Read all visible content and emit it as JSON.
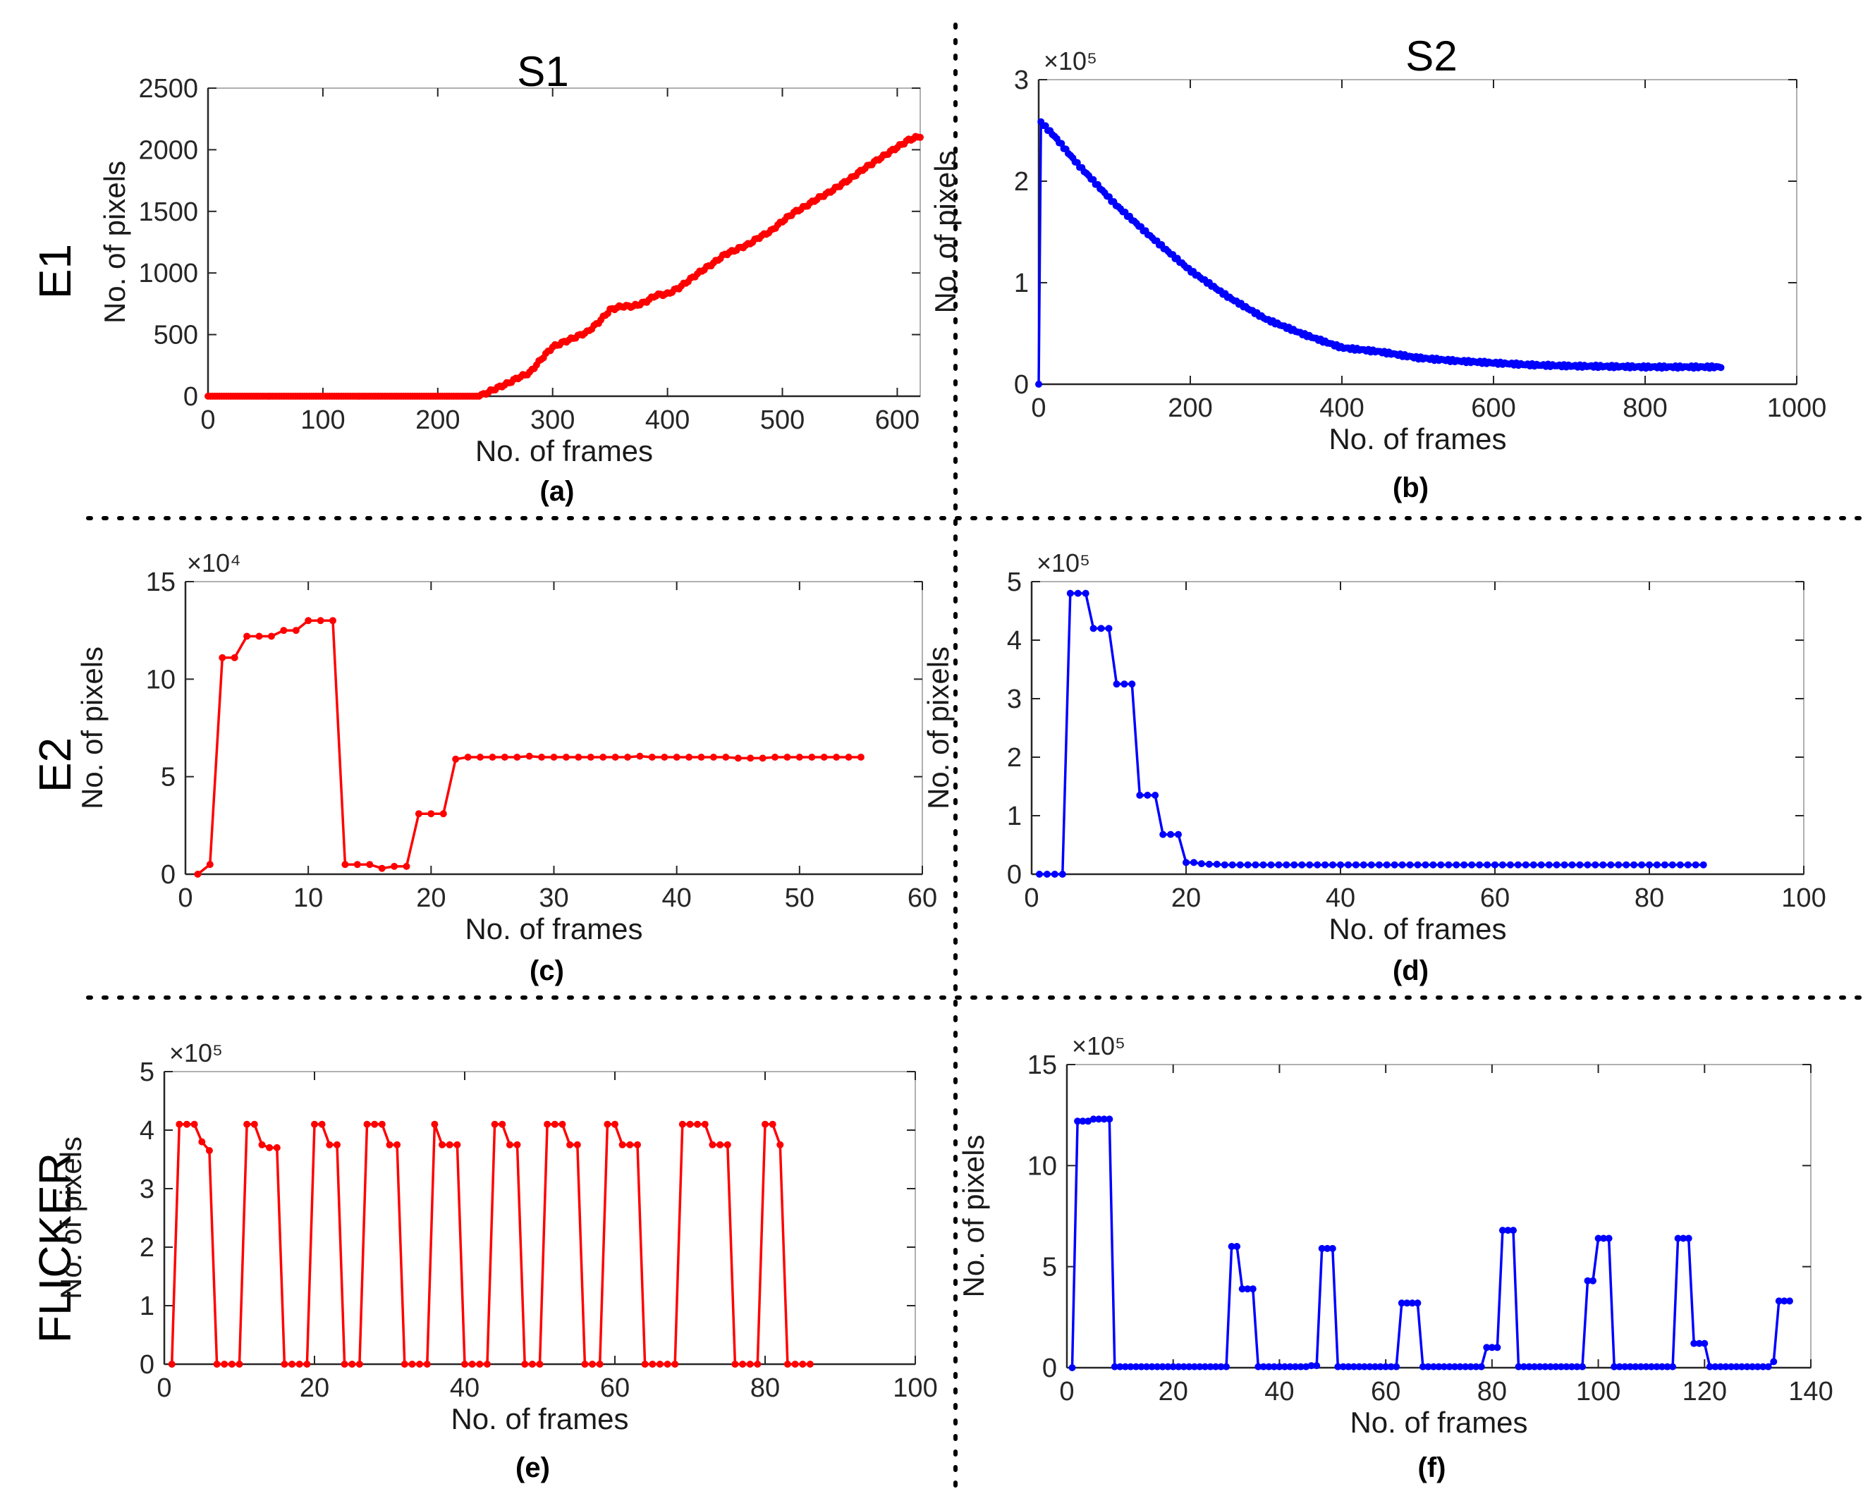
{
  "figure": {
    "column_labels": [
      "S1",
      "S2"
    ],
    "row_labels": [
      "E1",
      "E2",
      "FLICKER"
    ],
    "colors": {
      "red": "#ff0000",
      "blue": "#0000ff",
      "axis": "#262626",
      "tick_text": "#262626"
    }
  },
  "chart_data": [
    {
      "id": "a",
      "type": "line",
      "caption": "(a)",
      "color": "red",
      "xlabel": "No. of frames",
      "ylabel": "No. of pixels",
      "multiplier": "",
      "xlim": [
        0,
        620
      ],
      "ylim": [
        0,
        2500
      ],
      "xticks": [
        0,
        100,
        200,
        300,
        400,
        500,
        600
      ],
      "xtick_labels": [
        "0",
        "100",
        "200",
        "300",
        "400",
        "500",
        "600"
      ],
      "yticks": [
        0,
        500,
        1000,
        1500,
        2000,
        2500
      ],
      "ytick_labels": [
        "0",
        "500",
        "1000",
        "1500",
        "2000",
        "2500"
      ],
      "dense": true,
      "x_range": [
        0,
        620
      ],
      "x_step": 2,
      "keypoints": [
        [
          0,
          0
        ],
        [
          235,
          0
        ],
        [
          240,
          15
        ],
        [
          250,
          60
        ],
        [
          260,
          100
        ],
        [
          270,
          150
        ],
        [
          280,
          190
        ],
        [
          290,
          300
        ],
        [
          300,
          400
        ],
        [
          310,
          440
        ],
        [
          320,
          480
        ],
        [
          330,
          520
        ],
        [
          340,
          600
        ],
        [
          350,
          700
        ],
        [
          360,
          730
        ],
        [
          370,
          730
        ],
        [
          380,
          760
        ],
        [
          390,
          820
        ],
        [
          400,
          830
        ],
        [
          410,
          880
        ],
        [
          420,
          950
        ],
        [
          430,
          1020
        ],
        [
          440,
          1080
        ],
        [
          450,
          1150
        ],
        [
          460,
          1190
        ],
        [
          470,
          1230
        ],
        [
          480,
          1290
        ],
        [
          490,
          1340
        ],
        [
          500,
          1420
        ],
        [
          510,
          1490
        ],
        [
          520,
          1540
        ],
        [
          530,
          1600
        ],
        [
          540,
          1650
        ],
        [
          550,
          1710
        ],
        [
          560,
          1770
        ],
        [
          570,
          1840
        ],
        [
          580,
          1900
        ],
        [
          590,
          1960
        ],
        [
          600,
          2020
        ],
        [
          610,
          2080
        ],
        [
          620,
          2110
        ]
      ]
    },
    {
      "id": "b",
      "type": "line",
      "caption": "(b)",
      "color": "blue",
      "xlabel": "No. of frames",
      "ylabel": "No. of pixels",
      "multiplier": "×10⁵",
      "xlim": [
        0,
        1000
      ],
      "ylim": [
        0,
        3
      ],
      "xticks": [
        0,
        200,
        400,
        600,
        800,
        1000
      ],
      "xtick_labels": [
        "0",
        "200",
        "400",
        "600",
        "800",
        "1000"
      ],
      "yticks": [
        0,
        1,
        2,
        3
      ],
      "ytick_labels": [
        "0",
        "1",
        "2",
        "3"
      ],
      "dense": true,
      "x_range": [
        0,
        900
      ],
      "x_step": 3,
      "keypoints": [
        [
          0,
          0
        ],
        [
          3,
          2.58
        ],
        [
          20,
          2.45
        ],
        [
          50,
          2.18
        ],
        [
          100,
          1.78
        ],
        [
          150,
          1.44
        ],
        [
          200,
          1.12
        ],
        [
          250,
          0.86
        ],
        [
          300,
          0.64
        ],
        [
          350,
          0.49
        ],
        [
          400,
          0.36
        ],
        [
          450,
          0.32
        ],
        [
          500,
          0.26
        ],
        [
          550,
          0.23
        ],
        [
          600,
          0.21
        ],
        [
          650,
          0.19
        ],
        [
          700,
          0.18
        ],
        [
          800,
          0.17
        ],
        [
          900,
          0.17
        ]
      ]
    },
    {
      "id": "c",
      "type": "line",
      "caption": "(c)",
      "color": "red",
      "xlabel": "No. of frames",
      "ylabel": "No. of pixels",
      "multiplier": "×10⁴",
      "xlim": [
        0,
        60
      ],
      "ylim": [
        0,
        15
      ],
      "xticks": [
        0,
        10,
        20,
        30,
        40,
        50,
        60
      ],
      "xtick_labels": [
        "0",
        "10",
        "20",
        "30",
        "40",
        "50",
        "60"
      ],
      "yticks": [
        0,
        5,
        10,
        15
      ],
      "ytick_labels": [
        "0",
        "5",
        "10",
        "15"
      ],
      "x_start": 1,
      "values": [
        0,
        0.5,
        11.1,
        11.1,
        12.2,
        12.2,
        12.2,
        12.5,
        12.5,
        13,
        13,
        13,
        0.5,
        0.5,
        0.5,
        0.3,
        0.4,
        0.4,
        3.1,
        3.1,
        3.1,
        5.9,
        6,
        6,
        6,
        6,
        6,
        6.05,
        6,
        6,
        6,
        6,
        6,
        6,
        6,
        6,
        6.05,
        6,
        6,
        6,
        6,
        6,
        6,
        6,
        5.95,
        5.95,
        5.95,
        6,
        6,
        6,
        6,
        6,
        6,
        6,
        6
      ]
    },
    {
      "id": "d",
      "type": "line",
      "caption": "(d)",
      "color": "blue",
      "xlabel": "No. of frames",
      "ylabel": "No. of pixels",
      "multiplier": "×10⁵",
      "xlim": [
        0,
        100
      ],
      "ylim": [
        0,
        5
      ],
      "xticks": [
        0,
        20,
        40,
        60,
        80,
        100
      ],
      "xtick_labels": [
        "0",
        "20",
        "40",
        "60",
        "80",
        "100"
      ],
      "yticks": [
        0,
        1,
        2,
        3,
        4,
        5
      ],
      "ytick_labels": [
        "0",
        "1",
        "2",
        "3",
        "4",
        "5"
      ],
      "x_start": 1,
      "values": [
        0,
        0,
        0,
        0,
        4.8,
        4.8,
        4.8,
        4.2,
        4.2,
        4.2,
        3.25,
        3.25,
        3.25,
        1.35,
        1.35,
        1.35,
        0.68,
        0.68,
        0.68,
        0.2,
        0.2,
        0.18,
        0.17,
        0.17,
        0.16,
        0.16,
        0.16,
        0.16,
        0.16,
        0.16,
        0.16,
        0.16,
        0.16,
        0.16,
        0.16,
        0.16,
        0.16,
        0.16,
        0.16,
        0.16,
        0.16,
        0.16,
        0.16,
        0.16,
        0.16,
        0.16,
        0.16,
        0.16,
        0.16,
        0.16,
        0.16,
        0.16,
        0.16,
        0.16,
        0.16,
        0.16,
        0.16,
        0.16,
        0.16,
        0.16,
        0.16,
        0.16,
        0.16,
        0.16,
        0.16,
        0.16,
        0.16,
        0.16,
        0.16,
        0.16,
        0.16,
        0.16,
        0.16,
        0.16,
        0.16,
        0.16,
        0.16,
        0.16,
        0.16,
        0.16,
        0.16,
        0.16,
        0.16,
        0.16,
        0.16,
        0.16,
        0.16
      ]
    },
    {
      "id": "e",
      "type": "line",
      "caption": "(e)",
      "color": "red",
      "xlabel": "No. of frames",
      "ylabel": "No. of pixels",
      "multiplier": "×10⁵",
      "xlim": [
        0,
        100
      ],
      "ylim": [
        0,
        5
      ],
      "xticks": [
        0,
        20,
        40,
        60,
        80,
        100
      ],
      "xtick_labels": [
        "0",
        "20",
        "40",
        "60",
        "80",
        "100"
      ],
      "yticks": [
        0,
        1,
        2,
        3,
        4,
        5
      ],
      "ytick_labels": [
        "0",
        "1",
        "2",
        "3",
        "4",
        "5"
      ],
      "x_start": 1,
      "values": [
        0,
        4.1,
        4.1,
        4.1,
        3.8,
        3.65,
        0,
        0,
        0,
        0,
        4.1,
        4.1,
        3.75,
        3.7,
        3.7,
        0,
        0,
        0,
        0,
        4.1,
        4.1,
        3.75,
        3.75,
        0,
        0,
        0,
        4.1,
        4.1,
        4.1,
        3.75,
        3.75,
        0,
        0,
        0,
        0,
        4.1,
        3.75,
        3.75,
        3.75,
        0,
        0,
        0,
        0,
        4.1,
        4.1,
        3.75,
        3.75,
        0,
        0,
        0,
        4.1,
        4.1,
        4.1,
        3.75,
        3.75,
        0,
        0,
        0,
        4.1,
        4.1,
        3.75,
        3.75,
        3.75,
        0,
        0,
        0,
        0,
        0,
        4.1,
        4.1,
        4.1,
        4.1,
        3.75,
        3.75,
        3.75,
        0,
        0,
        0,
        0,
        4.1,
        4.1,
        3.75,
        0,
        0,
        0,
        0
      ]
    },
    {
      "id": "f",
      "type": "line",
      "caption": "(f)",
      "color": "blue",
      "xlabel": "No. of frames",
      "ylabel": "No. of pixels",
      "multiplier": "×10⁵",
      "xlim": [
        0,
        140
      ],
      "ylim": [
        0,
        15
      ],
      "xticks": [
        0,
        20,
        40,
        60,
        80,
        100,
        120,
        140
      ],
      "xtick_labels": [
        "0",
        "20",
        "40",
        "60",
        "80",
        "100",
        "120",
        "140"
      ],
      "yticks": [
        0,
        5,
        10,
        15
      ],
      "ytick_labels": [
        "0",
        "5",
        "10",
        "15"
      ],
      "x_start": 1,
      "values": [
        0,
        12.2,
        12.2,
        12.2,
        12.3,
        12.3,
        12.3,
        12.3,
        0.05,
        0.05,
        0.05,
        0.05,
        0.05,
        0.05,
        0.05,
        0.05,
        0.05,
        0.05,
        0.05,
        0.05,
        0.05,
        0.05,
        0.05,
        0.05,
        0.05,
        0.05,
        0.05,
        0.05,
        0.05,
        0.05,
        6,
        6,
        3.9,
        3.9,
        3.9,
        0.05,
        0.05,
        0.05,
        0.05,
        0.05,
        0.05,
        0.05,
        0.05,
        0.05,
        0.05,
        0.1,
        0.1,
        5.9,
        5.9,
        5.9,
        0.05,
        0.05,
        0.05,
        0.05,
        0.05,
        0.05,
        0.05,
        0.05,
        0.05,
        0.05,
        0.05,
        0.05,
        3.2,
        3.2,
        3.2,
        3.2,
        0.05,
        0.05,
        0.05,
        0.05,
        0.05,
        0.05,
        0.05,
        0.05,
        0.05,
        0.05,
        0.05,
        0.05,
        1,
        1,
        1,
        6.8,
        6.8,
        6.8,
        0.05,
        0.05,
        0.05,
        0.05,
        0.05,
        0.05,
        0.05,
        0.05,
        0.05,
        0.05,
        0.05,
        0.05,
        0.05,
        4.3,
        4.3,
        6.4,
        6.4,
        6.4,
        0.05,
        0.05,
        0.05,
        0.05,
        0.05,
        0.05,
        0.05,
        0.05,
        0.05,
        0.05,
        0.05,
        0.05,
        6.4,
        6.4,
        6.4,
        1.2,
        1.2,
        1.2,
        0.05,
        0.05,
        0.05,
        0.05,
        0.05,
        0.05,
        0.05,
        0.05,
        0.05,
        0.05,
        0.05,
        0.05,
        0.3,
        3.3,
        3.3,
        3.3
      ]
    }
  ]
}
